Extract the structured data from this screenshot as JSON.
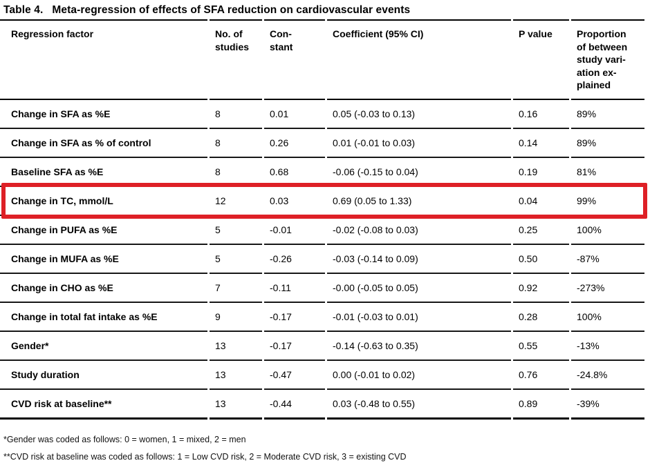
{
  "title": {
    "label": "Table 4.",
    "text": "Meta-regression of effects of SFA reduction on cardiovascular events"
  },
  "table": {
    "headers": [
      "Regression factor",
      "No. of\nstudies",
      "Con-\nstant",
      "Coefficient (95% CI)",
      "P value",
      "Proportion\nof between\nstudy vari-\nation ex-\nplained"
    ],
    "rows": [
      {
        "factor": "Change in SFA as %E",
        "no_of_studies": "8",
        "constant": "0.01",
        "coefficient_ci": "0.05 (-0.03 to 0.13)",
        "p_value": "0.16",
        "variation_explained": "89%"
      },
      {
        "factor": "Change in SFA as % of control",
        "no_of_studies": "8",
        "constant": "0.26",
        "coefficient_ci": "0.01 (-0.01 to 0.03)",
        "p_value": "0.14",
        "variation_explained": "89%"
      },
      {
        "factor": "Baseline SFA as %E",
        "no_of_studies": "8",
        "constant": "0.68",
        "coefficient_ci": "-0.06 (-0.15 to 0.04)",
        "p_value": "0.19",
        "variation_explained": "81%"
      },
      {
        "factor": "Change in TC, mmol/L",
        "no_of_studies": "12",
        "constant": "0.03",
        "coefficient_ci": "0.69 (0.05 to 1.33)",
        "p_value": "0.04",
        "variation_explained": "99%"
      },
      {
        "factor": "Change in PUFA as %E",
        "no_of_studies": "5",
        "constant": "-0.01",
        "coefficient_ci": "-0.02 (-0.08 to 0.03)",
        "p_value": "0.25",
        "variation_explained": "100%"
      },
      {
        "factor": "Change in MUFA as %E",
        "no_of_studies": "5",
        "constant": "-0.26",
        "coefficient_ci": "-0.03 (-0.14 to 0.09)",
        "p_value": "0.50",
        "variation_explained": "-87%"
      },
      {
        "factor": "Change in CHO as %E",
        "no_of_studies": "7",
        "constant": "-0.11",
        "coefficient_ci": "-0.00 (-0.05 to 0.05)",
        "p_value": "0.92",
        "variation_explained": "-273%"
      },
      {
        "factor": "Change in total fat intake as %E",
        "no_of_studies": "9",
        "constant": "-0.17",
        "coefficient_ci": "-0.01 (-0.03 to 0.01)",
        "p_value": "0.28",
        "variation_explained": "100%"
      },
      {
        "factor": "Gender*",
        "no_of_studies": "13",
        "constant": "-0.17",
        "coefficient_ci": "-0.14 (-0.63 to 0.35)",
        "p_value": "0.55",
        "variation_explained": "-13%"
      },
      {
        "factor": "Study duration",
        "no_of_studies": "13",
        "constant": "-0.47",
        "coefficient_ci": "0.00 (-0.01 to 0.02)",
        "p_value": "0.76",
        "variation_explained": "-24.8%"
      },
      {
        "factor": "CVD risk at baseline**",
        "no_of_studies": "13",
        "constant": "-0.44",
        "coefficient_ci": "0.03 (-0.48 to 0.55)",
        "p_value": "0.89",
        "variation_explained": "-39%"
      }
    ]
  },
  "highlight": {
    "row_index": 3,
    "row_factor": "Change in TC, mmol/L",
    "color": "#de2026"
  },
  "footnotes": [
    "*Gender was coded as follows: 0 = women, 1 = mixed, 2 = men",
    "**CVD risk at baseline was coded as follows: 1 = Low CVD risk, 2 = Moderate CVD risk, 3 = existing CVD"
  ]
}
